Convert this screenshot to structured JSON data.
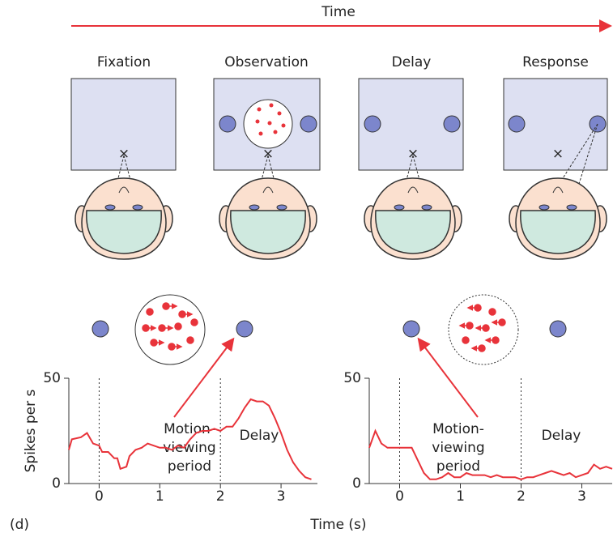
{
  "timeline": {
    "title": "Time",
    "stages": [
      "Fixation",
      "Observation",
      "Delay",
      "Response"
    ]
  },
  "panel_label": "(d)",
  "x_axis_label": "Time (s)",
  "chart_data": [
    {
      "type": "line",
      "y_axis_label": "Spikes per s",
      "color": "#e8333a",
      "annotations": [
        [
          "Motion-",
          "viewing",
          "period"
        ],
        "Delay"
      ],
      "vlines": [
        0,
        2
      ],
      "x": [
        -0.5,
        -0.45,
        -0.3,
        -0.2,
        -0.1,
        0,
        0.05,
        0.15,
        0.25,
        0.3,
        0.35,
        0.45,
        0.5,
        0.6,
        0.7,
        0.8,
        0.9,
        1.0,
        1.1,
        1.2,
        1.3,
        1.4,
        1.5,
        1.6,
        1.7,
        1.8,
        1.9,
        2.0,
        2.1,
        2.2,
        2.3,
        2.4,
        2.5,
        2.6,
        2.7,
        2.8,
        2.9,
        3.0,
        3.1,
        3.2,
        3.3,
        3.4,
        3.5
      ],
      "values": [
        16,
        21,
        22,
        24,
        19,
        18,
        15,
        15,
        12,
        12,
        7,
        8,
        13,
        16,
        17,
        19,
        18,
        17,
        17,
        16,
        18,
        17,
        21,
        24,
        25,
        25,
        26,
        25,
        27,
        27,
        31,
        36,
        40,
        39,
        39,
        37,
        31,
        24,
        16,
        10,
        6,
        3,
        2
      ],
      "xlim": [
        -0.5,
        3.6
      ],
      "ylim": [
        0,
        50
      ],
      "xticks": [
        0,
        1,
        2,
        3
      ],
      "yticks": [
        0,
        50
      ]
    },
    {
      "type": "line",
      "color": "#e8333a",
      "annotations": [
        [
          "Motion-",
          "viewing",
          "period"
        ],
        "Delay"
      ],
      "vlines": [
        0,
        2
      ],
      "x": [
        -0.5,
        -0.4,
        -0.3,
        -0.2,
        -0.1,
        0,
        0.1,
        0.2,
        0.3,
        0.4,
        0.5,
        0.6,
        0.7,
        0.8,
        0.9,
        1.0,
        1.1,
        1.2,
        1.3,
        1.4,
        1.5,
        1.6,
        1.7,
        1.8,
        1.9,
        2.0,
        2.1,
        2.2,
        2.3,
        2.4,
        2.5,
        2.6,
        2.7,
        2.8,
        2.9,
        3.0,
        3.1,
        3.2,
        3.3,
        3.4,
        3.5
      ],
      "values": [
        17,
        25,
        19,
        17,
        17,
        17,
        17,
        17,
        11,
        5,
        2,
        2,
        3,
        5,
        3,
        3,
        5,
        4,
        4,
        4,
        3,
        4,
        3,
        3,
        3,
        2,
        3,
        3,
        4,
        5,
        6,
        5,
        4,
        5,
        3,
        4,
        5,
        9,
        7,
        8,
        7
      ],
      "xlim": [
        -0.5,
        3.5
      ],
      "ylim": [
        0,
        50
      ],
      "xticks": [
        0,
        1,
        2,
        3
      ],
      "yticks": [
        0,
        50
      ]
    }
  ]
}
